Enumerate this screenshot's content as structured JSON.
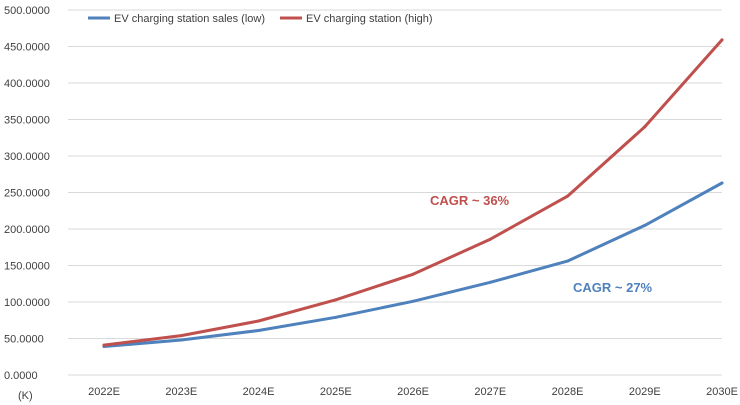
{
  "chart_data": {
    "type": "line",
    "categories": [
      "2022E",
      "2023E",
      "2024E",
      "2025E",
      "2026E",
      "2027E",
      "2028E",
      "2029E",
      "2030E"
    ],
    "series": [
      {
        "name": "EV charging station sales (low)",
        "color": "#4f81bd",
        "values": [
          39,
          48,
          61,
          79,
          101,
          127,
          156,
          205,
          263
        ]
      },
      {
        "name": "EV charging station (high)",
        "color": "#c0504d",
        "values": [
          41,
          54,
          74,
          103,
          138,
          186,
          245,
          340,
          459
        ]
      }
    ],
    "y_ticks": [
      "0.0000",
      "50.0000",
      "100.0000",
      "150.0000",
      "200.0000",
      "250.0000",
      "300.0000",
      "350.0000",
      "400.0000",
      "450.0000",
      "500.0000"
    ],
    "ylim": [
      0,
      500
    ],
    "unit_label": "(K)",
    "grid": true,
    "legend_position": "top-left",
    "annotations": [
      {
        "text": "CAGR ~ 36%",
        "series": 1,
        "color": "#c0504d"
      },
      {
        "text": "CAGR ~ 27%",
        "series": 0,
        "color": "#4f81bd"
      }
    ]
  }
}
